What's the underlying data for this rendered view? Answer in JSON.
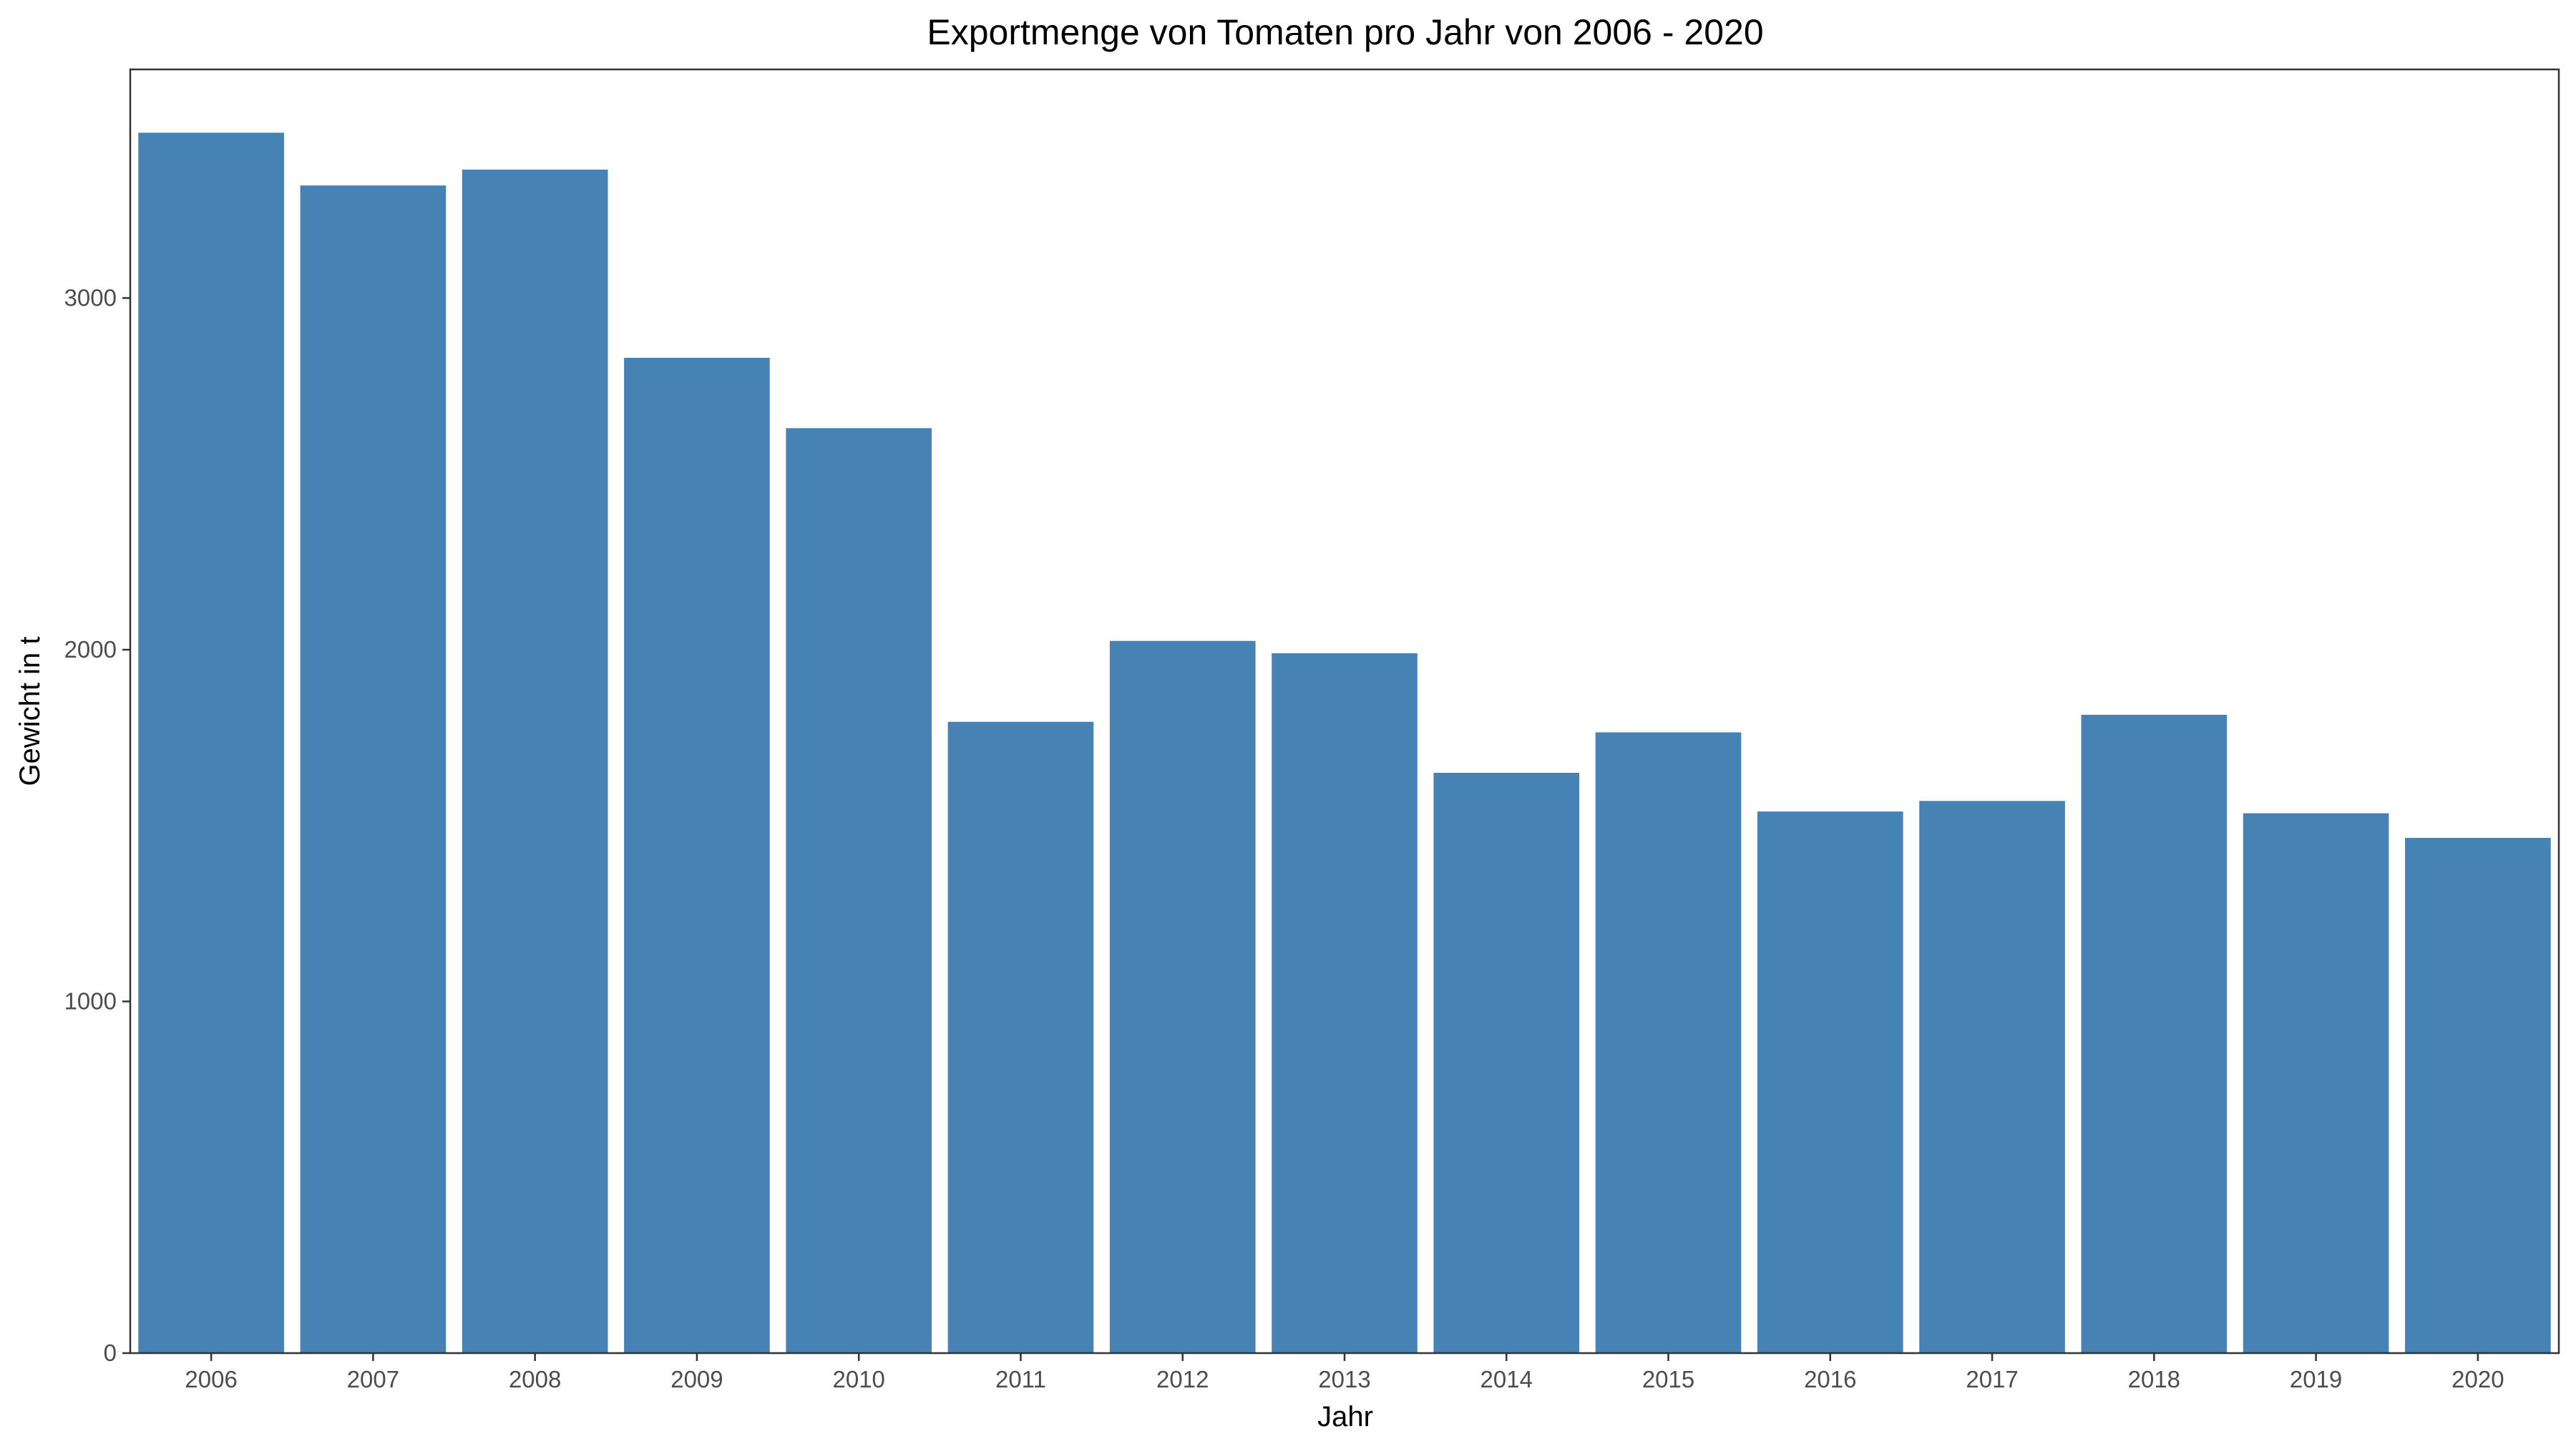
{
  "chart_data": {
    "type": "bar",
    "title": "Exportmenge von Tomaten pro Jahr von 2006 - 2020",
    "xlabel": "Jahr",
    "ylabel": "Gewicht in t",
    "categories": [
      "2006",
      "2007",
      "2008",
      "2009",
      "2010",
      "2011",
      "2012",
      "2013",
      "2014",
      "2015",
      "2016",
      "2017",
      "2018",
      "2019",
      "2020"
    ],
    "values": [
      3470,
      3320,
      3365,
      2830,
      2630,
      1795,
      2025,
      1990,
      1650,
      1765,
      1540,
      1570,
      1815,
      1535,
      1465
    ],
    "ylim": [
      0,
      3650
    ],
    "yticks": [
      0,
      1000,
      2000,
      3000
    ],
    "grid": false,
    "legend": "none",
    "bar_color": "#4682B4"
  }
}
